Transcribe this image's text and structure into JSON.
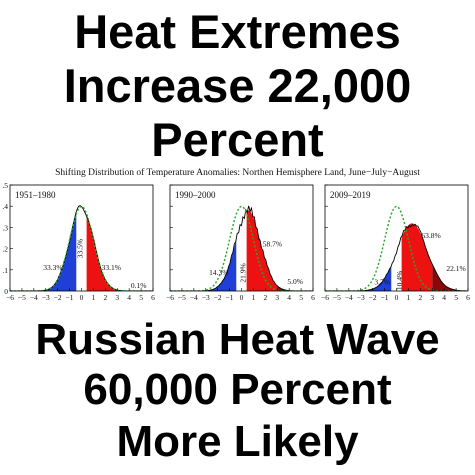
{
  "headline_top": [
    "Heat Extremes",
    "Increase 22,000",
    "Percent"
  ],
  "headline_bottom": [
    "Russian Heat Wave",
    "60,000 Percent",
    "More Likely"
  ],
  "colors": {
    "cold": "#1f3fd6",
    "normal": "#ffffff",
    "hot": "#ee1111",
    "extreme": "#8a0808",
    "reference_curve": "#22aa22",
    "outline": "#000000"
  },
  "chart_data": {
    "type": "area",
    "title": "Shifting Distribution of Temperature Anomalies: Northen Hemisphere Land, June−July−August",
    "xlim": [
      -6,
      6
    ],
    "ylim": [
      0,
      0.5
    ],
    "x_ticks": [
      "−6",
      "−5",
      "−4",
      "−3",
      "−2",
      "−1",
      "0",
      "1",
      "2",
      "3",
      "4",
      "5",
      "6"
    ],
    "y_ticks": [
      ".5",
      ".4",
      ".3",
      ".2",
      ".1",
      "0"
    ],
    "reference_curve": "normal distribution (1951–1980 baseline), dotted green",
    "panels": [
      {
        "period": "1951–1980",
        "mean": 0,
        "sd": 1,
        "labels": [
          {
            "text": "33.3%",
            "x": -2.4,
            "y": 0.1,
            "rotate": false
          },
          {
            "text": "33.5%",
            "x": 0.1,
            "y": 0.2,
            "rotate": true
          },
          {
            "text": "33.1%",
            "x": 2.5,
            "y": 0.1,
            "rotate": false
          },
          {
            "text": "0.1%",
            "x": 4.8,
            "y": 0.015,
            "rotate": false
          }
        ]
      },
      {
        "period": "1990–2000",
        "mean": 0.55,
        "sd": 1.05,
        "labels": [
          {
            "text": "14.3%",
            "x": -1.9,
            "y": 0.075,
            "rotate": false
          },
          {
            "text": "21.9%",
            "x": 0.35,
            "y": 0.085,
            "rotate": true
          },
          {
            "text": "58.7%",
            "x": 2.6,
            "y": 0.21,
            "rotate": false
          },
          {
            "text": "5.0%",
            "x": 4.5,
            "y": 0.033,
            "rotate": false
          }
        ]
      },
      {
        "period": "2009–2019",
        "mean": 1.3,
        "sd": 1.25,
        "labels": [
          {
            "text": "3.7%",
            "x": -1.2,
            "y": 0.03,
            "rotate": false
          },
          {
            "text": "10.4%",
            "x": 0.45,
            "y": 0.05,
            "rotate": true
          },
          {
            "text": "63.8%",
            "x": 2.9,
            "y": 0.25,
            "rotate": false
          },
          {
            "text": "22.1%",
            "x": 5.0,
            "y": 0.095,
            "rotate": false
          }
        ]
      }
    ]
  }
}
